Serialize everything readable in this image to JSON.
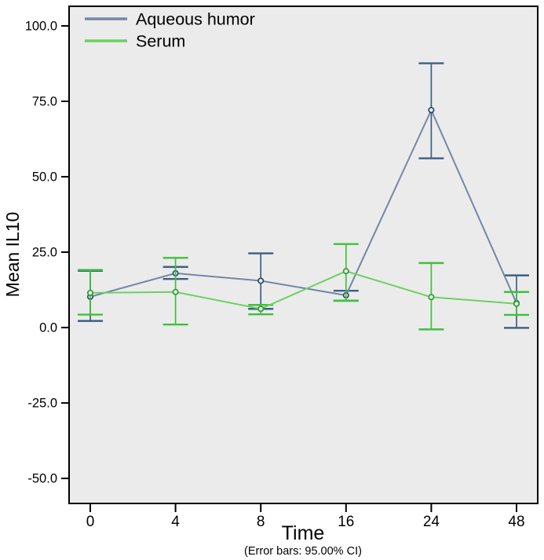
{
  "chart_data": {
    "type": "line",
    "title": "",
    "xlabel": "Time",
    "ylabel": "Mean IL10",
    "footnote": "(Error bars: 95.00% CI)",
    "error_bars": "95.00% CI",
    "legend_position": "top-left-inside",
    "plot_bg_color": "#ebebeb",
    "categories": [
      "0",
      "4",
      "8",
      "16",
      "24",
      "48"
    ],
    "y_tick_labels": [
      "100.0",
      "75.0",
      "50.0",
      "25.0",
      "0.0",
      "-25.0",
      "-50.0"
    ],
    "y_tick_values": [
      100,
      75,
      50,
      25,
      0,
      -25,
      -50
    ],
    "ylim": [
      -58.3,
      106.5
    ],
    "series": [
      {
        "name": "Aqueous humor",
        "line_color": "#7288a7",
        "error_color": "#3d5f85",
        "marker_color": "#2b4a6f",
        "values": [
          10.2,
          18.0,
          15.5,
          10.7,
          72.1,
          8.1
        ],
        "ci_low": [
          2.2,
          16.1,
          6.2,
          8.9,
          56.1,
          -0.1
        ],
        "ci_high": [
          18.8,
          20.1,
          24.6,
          12.2,
          87.6,
          17.3
        ]
      },
      {
        "name": "Serum",
        "line_color": "#6bd25f",
        "error_color": "#3fc13b",
        "marker_color": "#2f9f35",
        "values": [
          11.5,
          11.8,
          6.2,
          18.7,
          10.1,
          7.9
        ],
        "ci_low": [
          4.3,
          1.0,
          4.4,
          8.9,
          -0.6,
          4.2
        ],
        "ci_high": [
          19.1,
          23.1,
          7.5,
          27.7,
          21.4,
          11.8
        ]
      }
    ]
  }
}
